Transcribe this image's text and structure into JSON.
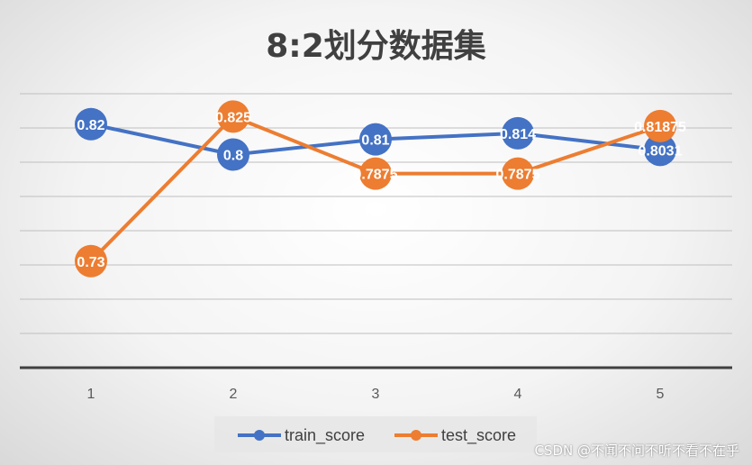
{
  "title": "8:2划分数据集",
  "watermark": "CSDN @不闻不问不听不看不在乎",
  "colors": {
    "train": "#4472C4",
    "test": "#ED7D31",
    "axis": "#404040",
    "grid": "#BFBFBF"
  },
  "chart_data": {
    "type": "line",
    "title": "8:2划分数据集",
    "categories": [
      "1",
      "2",
      "3",
      "4",
      "5"
    ],
    "series": [
      {
        "name": "train_score",
        "values": [
          0.82,
          0.8,
          0.81,
          0.814,
          0.8031
        ],
        "labels": [
          "0.82",
          "0.8",
          "0.81",
          "0.814",
          "0.8031"
        ],
        "color": "#4472C4"
      },
      {
        "name": "test_score",
        "values": [
          0.73,
          0.825,
          0.7875,
          0.7875,
          0.81875
        ],
        "labels": [
          "0.73",
          "0.825",
          "0.7875",
          "0.7875",
          "0.81875"
        ],
        "color": "#ED7D31"
      }
    ],
    "ylim": [
      0.66,
      0.84
    ],
    "grid": true,
    "legend": "bottom"
  }
}
